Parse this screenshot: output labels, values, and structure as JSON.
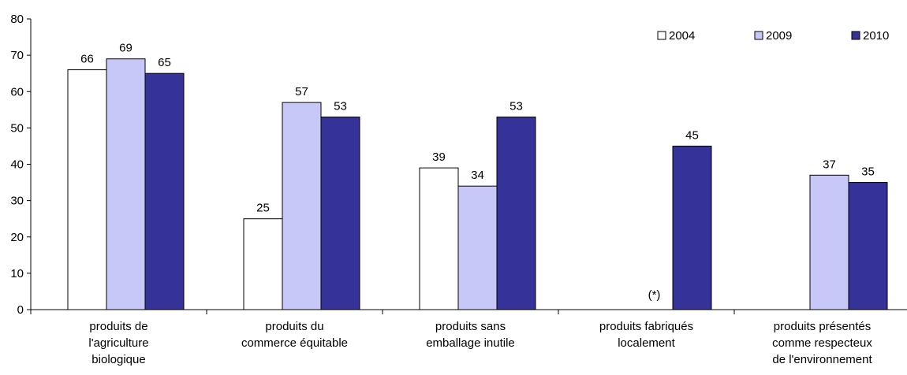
{
  "chart_data": {
    "type": "bar",
    "title": "",
    "xlabel": "",
    "ylabel": "",
    "ylim": [
      0,
      80
    ],
    "yticks": [
      0,
      10,
      20,
      30,
      40,
      50,
      60,
      70,
      80
    ],
    "grid": false,
    "legend_position": "top-right",
    "categories": [
      [
        "produits de",
        "l'agriculture",
        "biologique"
      ],
      [
        "produits du",
        "commerce équitable"
      ],
      [
        "produits sans",
        "emballage inutile"
      ],
      [
        "produits fabriqués",
        "localement"
      ],
      [
        "produits présentés",
        "comme  respecteux",
        "de l'environnement"
      ]
    ],
    "series": [
      {
        "name": "2004",
        "color": "#ffffff",
        "values": [
          66,
          25,
          39,
          null,
          null
        ]
      },
      {
        "name": "2009",
        "color": "#c8c8f8",
        "values": [
          69,
          57,
          34,
          null,
          37
        ]
      },
      {
        "name": "2010",
        "color": "#353399",
        "values": [
          65,
          53,
          53,
          45,
          35
        ]
      }
    ],
    "annotations": [
      {
        "category_index": 3,
        "text": "(*)"
      }
    ]
  }
}
